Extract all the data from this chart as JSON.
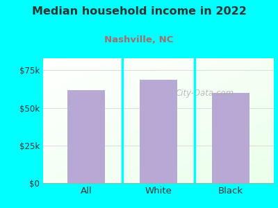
{
  "title": "Median household income in 2022",
  "subtitle": "Nashville, NC",
  "categories": [
    "All",
    "White",
    "Black"
  ],
  "values": [
    62000,
    68500,
    60000
  ],
  "bar_color": "#b8a9d4",
  "bg_color": "#00FFFF",
  "title_color": "#333333",
  "subtitle_color": "#a07070",
  "yticks": [
    0,
    25000,
    50000,
    75000
  ],
  "ytick_labels": [
    "$0",
    "$25k",
    "$50k",
    "$75k"
  ],
  "ylim": [
    0,
    83000
  ],
  "watermark": "City-Data.com",
  "watermark_color": "#aaaaaa",
  "axis_line_color": "#aaaaaa",
  "grid_color": "#dddddd",
  "chart_bg_left": "#f0fff0",
  "chart_bg_right": "#e8f5e8"
}
